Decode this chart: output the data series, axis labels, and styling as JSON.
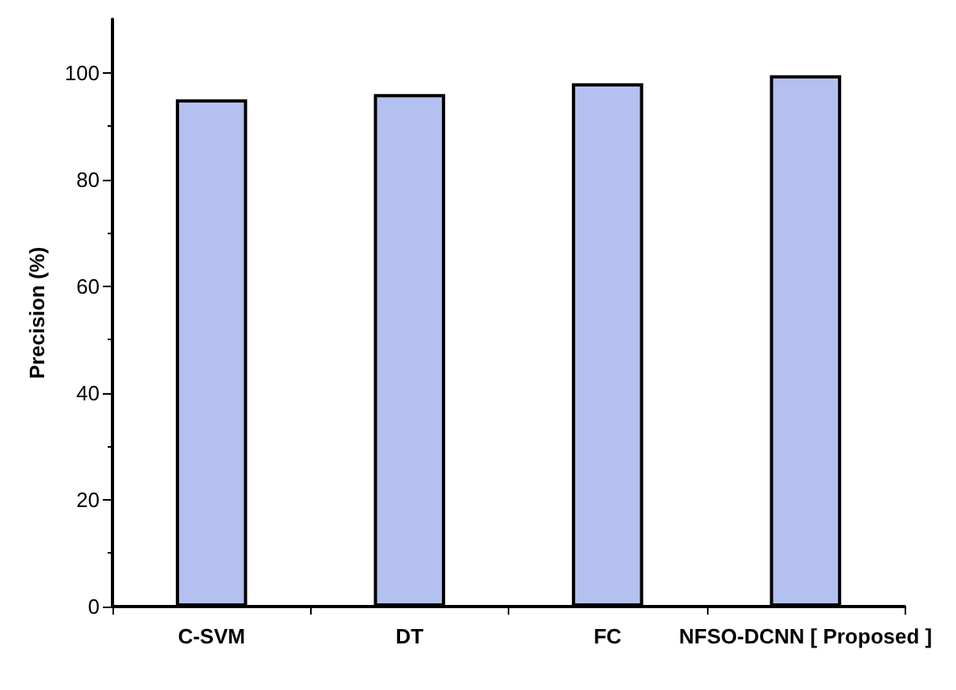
{
  "chart_data": {
    "type": "bar",
    "ylabel": "Precision (%)",
    "categories": [
      "C-SVM",
      "DT",
      "FC",
      "NFSO-DCNN [ Proposed ]"
    ],
    "values": [
      95,
      96,
      98,
      99.5
    ],
    "color": "#b4c0f0",
    "ylim": [
      0,
      110
    ],
    "yticks": [
      0,
      20,
      40,
      60,
      80,
      100
    ],
    "grid": false
  }
}
